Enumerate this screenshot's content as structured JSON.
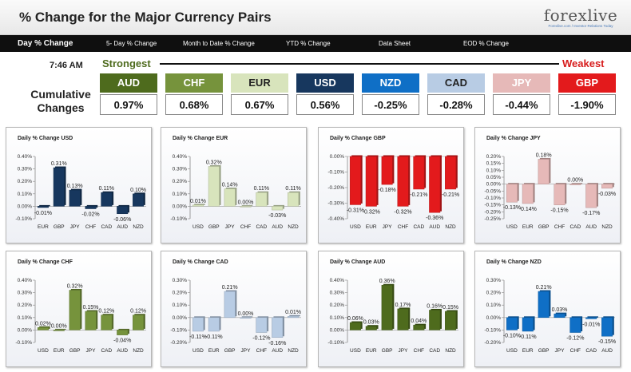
{
  "header": {
    "title": "% Change for the Major Currency Pairs",
    "logo": "forexlive",
    "logo_tagline": "Forexlive.com / Investor Relations Today"
  },
  "tabs": [
    {
      "label": "Day % Change",
      "active": true
    },
    {
      "label": "5- Day % Change",
      "active": false
    },
    {
      "label": "Month to Date % Change",
      "active": false
    },
    {
      "label": "YTD % Change",
      "active": false
    },
    {
      "label": "Data Sheet",
      "active": false
    },
    {
      "label": "EOD % Change",
      "active": false
    }
  ],
  "summary": {
    "time": "7:46 AM",
    "strongest": "Strongest",
    "weakest": "Weakest",
    "cumulative_label": "Cumulative Changes",
    "currencies": [
      {
        "code": "AUD",
        "value": "0.97%",
        "color": "#4e6b1d",
        "text_color": "#ffffff"
      },
      {
        "code": "CHF",
        "value": "0.68%",
        "color": "#76933c",
        "text_color": "#ffffff"
      },
      {
        "code": "EUR",
        "value": "0.67%",
        "color": "#d8e4bc",
        "text_color": "#222222"
      },
      {
        "code": "USD",
        "value": "0.56%",
        "color": "#17375e",
        "text_color": "#ffffff"
      },
      {
        "code": "NZD",
        "value": "-0.25%",
        "color": "#0f6fc6",
        "text_color": "#ffffff"
      },
      {
        "code": "CAD",
        "value": "-0.28%",
        "color": "#b8cce4",
        "text_color": "#222222"
      },
      {
        "code": "JPY",
        "value": "-0.44%",
        "color": "#e6b9b8",
        "text_color": "#ffffff"
      },
      {
        "code": "GBP",
        "value": "-1.90%",
        "color": "#e31a1c",
        "text_color": "#ffffff"
      }
    ]
  },
  "chart_data": [
    {
      "type": "bar",
      "title": "Daily % Change USD",
      "color": "#17375e",
      "categories": [
        "EUR",
        "GBP",
        "JPY",
        "CHF",
        "CAD",
        "AUD",
        "NZD"
      ],
      "values": [
        -0.01,
        0.31,
        0.13,
        -0.02,
        0.11,
        -0.06,
        0.1
      ],
      "labels": [
        "-0.01%",
        "0.31%",
        "0.13%",
        "-0.02%",
        "0.11%",
        "-0.06%",
        "0.10%"
      ],
      "ylim": [
        -0.1,
        0.4
      ],
      "ticks": [
        "0.40%",
        "0.30%",
        "0.20%",
        "0.10%",
        "0.00%",
        "-0.10%"
      ]
    },
    {
      "type": "bar",
      "title": "Daily % Change EUR",
      "color": "#d8e4bc",
      "categories": [
        "USD",
        "GBP",
        "JPY",
        "CHF",
        "CAD",
        "AUD",
        "NZD"
      ],
      "values": [
        0.01,
        0.32,
        0.14,
        0.0,
        0.11,
        -0.03,
        0.11
      ],
      "labels": [
        "0.01%",
        "0.32%",
        "0.14%",
        "0.00%",
        "0.11%",
        "-0.03%",
        "0.11%"
      ],
      "ylim": [
        -0.1,
        0.4
      ],
      "ticks": [
        "0.40%",
        "0.30%",
        "0.20%",
        "0.10%",
        "0.00%",
        "-0.10%"
      ]
    },
    {
      "type": "bar",
      "title": "Daily % Change GBP",
      "color": "#e31a1c",
      "categories": [
        "USD",
        "EUR",
        "JPY",
        "CHF",
        "CAD",
        "AUD",
        "NZD"
      ],
      "values": [
        -0.31,
        -0.32,
        -0.18,
        -0.32,
        -0.21,
        -0.36,
        -0.21
      ],
      "labels": [
        "-0.31%",
        "-0.32%",
        "-0.18%",
        "-0.32%",
        "-0.21%",
        "-0.36%",
        "-0.21%"
      ],
      "ylim": [
        -0.4,
        0.0
      ],
      "ticks": [
        "0.00%",
        "-0.10%",
        "-0.20%",
        "-0.30%",
        "-0.40%"
      ]
    },
    {
      "type": "bar",
      "title": "Daily % Change JPY",
      "color": "#e6b9b8",
      "categories": [
        "USD",
        "EUR",
        "GBP",
        "CHF",
        "CAD",
        "AUD",
        "NZD"
      ],
      "values": [
        -0.13,
        -0.14,
        0.18,
        -0.15,
        0.0,
        -0.17,
        -0.03
      ],
      "labels": [
        "-0.13%",
        "-0.14%",
        "0.18%",
        "-0.15%",
        "0.00%",
        "-0.17%",
        "-0.03%"
      ],
      "ylim": [
        -0.25,
        0.2
      ],
      "ticks": [
        "0.20%",
        "0.15%",
        "0.10%",
        "0.05%",
        "0.00%",
        "-0.05%",
        "-0.10%",
        "-0.15%",
        "-0.20%",
        "-0.25%"
      ]
    },
    {
      "type": "bar",
      "title": "Daily % Change CHF",
      "color": "#76933c",
      "categories": [
        "USD",
        "EUR",
        "GBP",
        "JPY",
        "CAD",
        "AUD",
        "NZD"
      ],
      "values": [
        0.02,
        0.0,
        0.32,
        0.15,
        0.12,
        -0.04,
        0.12
      ],
      "labels": [
        "0.02%",
        "0.00%",
        "0.32%",
        "0.15%",
        "0.12%",
        "-0.04%",
        "0.12%"
      ],
      "ylim": [
        -0.1,
        0.4
      ],
      "ticks": [
        "0.40%",
        "0.30%",
        "0.20%",
        "0.10%",
        "0.00%",
        "-0.10%"
      ]
    },
    {
      "type": "bar",
      "title": "Daily % Change CAD",
      "color": "#b8cce4",
      "categories": [
        "USD",
        "EUR",
        "GBP",
        "JPY",
        "CHF",
        "AUD",
        "NZD"
      ],
      "values": [
        -0.11,
        -0.11,
        0.21,
        0.0,
        -0.12,
        -0.16,
        0.01
      ],
      "labels": [
        "-0.11%",
        "-0.11%",
        "0.21%",
        "0.00%",
        "-0.12%",
        "-0.16%",
        "0.01%"
      ],
      "ylim": [
        -0.2,
        0.3
      ],
      "ticks": [
        "0.30%",
        "0.20%",
        "0.10%",
        "0.00%",
        "-0.10%",
        "-0.20%"
      ]
    },
    {
      "type": "bar",
      "title": "Daily % Change AUD",
      "color": "#4e6b1d",
      "categories": [
        "USD",
        "EUR",
        "GBP",
        "JPY",
        "CHF",
        "CAD",
        "NZD"
      ],
      "values": [
        0.06,
        0.03,
        0.36,
        0.17,
        0.04,
        0.16,
        0.15
      ],
      "labels": [
        "0.06%",
        "0.03%",
        "0.36%",
        "0.17%",
        "0.04%",
        "0.16%",
        "0.15%"
      ],
      "ylim": [
        -0.1,
        0.4
      ],
      "ticks": [
        "0.40%",
        "0.30%",
        "0.20%",
        "0.10%",
        "0.00%",
        "-0.10%"
      ]
    },
    {
      "type": "bar",
      "title": "Daily % Change NZD",
      "color": "#0f6fc6",
      "categories": [
        "USD",
        "EUR",
        "GBP",
        "JPY",
        "CHF",
        "CAD",
        "AUD"
      ],
      "values": [
        -0.1,
        -0.11,
        0.21,
        0.03,
        -0.12,
        -0.01,
        -0.15
      ],
      "labels": [
        "-0.10%",
        "-0.11%",
        "0.21%",
        "0.03%",
        "-0.12%",
        "-0.01%",
        "-0.15%"
      ],
      "ylim": [
        -0.2,
        0.3
      ],
      "ticks": [
        "0.30%",
        "0.20%",
        "0.10%",
        "0.00%",
        "-0.10%",
        "-0.20%"
      ]
    }
  ]
}
